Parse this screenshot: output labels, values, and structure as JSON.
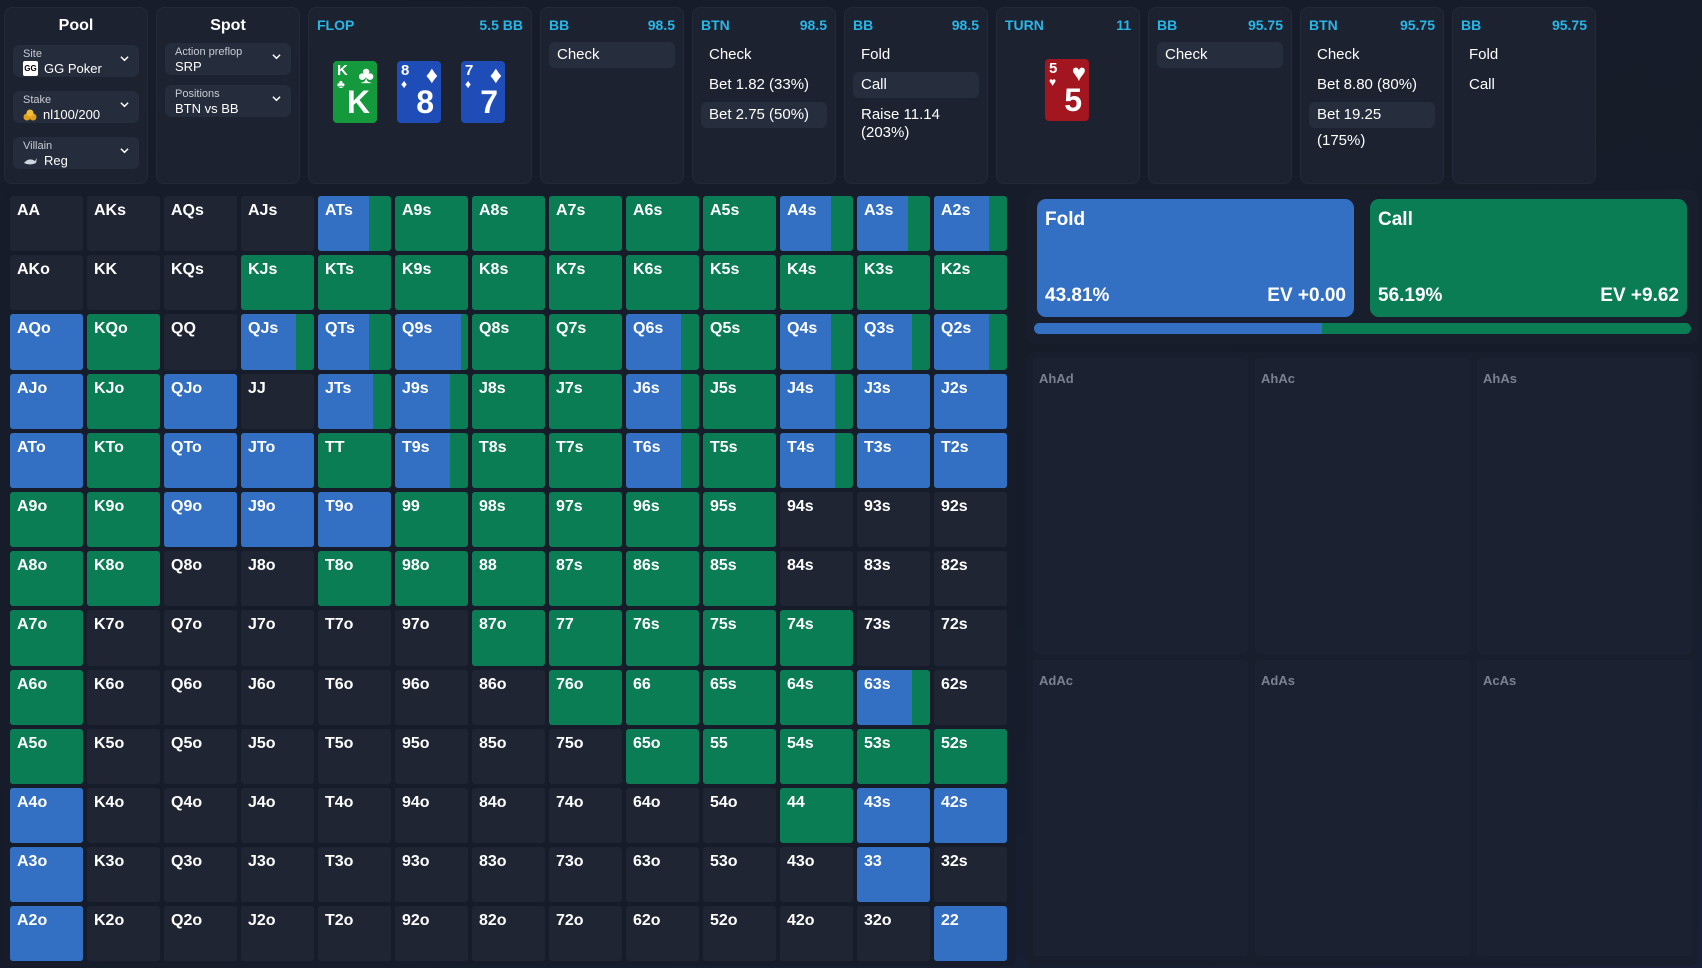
{
  "pool": {
    "title": "Pool",
    "site_label": "Site",
    "site_value": "GG Poker",
    "site_tag": "GG",
    "stake_label": "Stake",
    "stake_value": "nl100/200",
    "villain_label": "Villain",
    "villain_value": "Reg"
  },
  "spot": {
    "title": "Spot",
    "preflop_label": "Action preflop",
    "preflop_value": "SRP",
    "positions_label": "Positions",
    "positions_value": "BTN vs BB"
  },
  "flop": {
    "title": "FLOP",
    "pot": "5.5 BB",
    "cards": [
      {
        "rank": "K",
        "suit": "♣",
        "color": "#149a3c"
      },
      {
        "rank": "8",
        "suit": "♦",
        "color": "#1f4db8"
      },
      {
        "rank": "7",
        "suit": "♦",
        "color": "#1f4db8"
      }
    ]
  },
  "turn": {
    "title": "TURN",
    "pot": "11",
    "card": {
      "rank": "5",
      "suit": "♥",
      "color": "#a3161f"
    }
  },
  "streets": [
    {
      "player": "BB",
      "stack": "98.5",
      "actions": [
        "Check"
      ],
      "selected": 0
    },
    {
      "player": "BTN",
      "stack": "98.5",
      "actions": [
        "Check",
        "Bet 1.82 (33%)",
        "Bet 2.75 (50%)"
      ],
      "selected": 2
    },
    {
      "player": "BB",
      "stack": "98.5",
      "actions": [
        "Fold",
        "Call",
        "Raise 11.14 (203%)"
      ],
      "selected": 1
    },
    {
      "player": "BB",
      "stack": "95.75",
      "actions": [
        "Check"
      ],
      "selected": 0
    },
    {
      "player": "BTN",
      "stack": "95.75",
      "actions": [
        "Check",
        "Bet 8.80 (80%)",
        "Bet 19.25 (175%)"
      ],
      "selected": 2
    },
    {
      "player": "BB",
      "stack": "95.75",
      "actions": [
        "Fold",
        "Call"
      ],
      "selected": -1
    }
  ],
  "colors": {
    "fold": "#3370c4",
    "call": "#0a7d55",
    "empty": "#1f2533",
    "accent": "#29b6e8"
  },
  "summary": {
    "fold": {
      "label": "Fold",
      "pct": "43.81%",
      "ev": "EV +0.00",
      "freq": 0.4381
    },
    "call": {
      "label": "Call",
      "pct": "56.19%",
      "ev": "EV +9.62",
      "freq": 0.5619
    }
  },
  "combos": [
    "AhAd",
    "AhAc",
    "AhAs",
    "AdAc",
    "AdAs",
    "AcAs"
  ],
  "range_grid": [
    [
      [
        "AA",
        null
      ],
      [
        "AKs",
        null
      ],
      [
        "AQs",
        null
      ],
      [
        "AJs",
        null
      ],
      [
        "ATs",
        0.7
      ],
      [
        "A9s",
        0
      ],
      [
        "A8s",
        0
      ],
      [
        "A7s",
        0
      ],
      [
        "A6s",
        0
      ],
      [
        "A5s",
        0
      ],
      [
        "A4s",
        0.7
      ],
      [
        "A3s",
        0.7
      ],
      [
        "A2s",
        0.75
      ]
    ],
    [
      [
        "AKo",
        null
      ],
      [
        "KK",
        null
      ],
      [
        "KQs",
        null
      ],
      [
        "KJs",
        0
      ],
      [
        "KTs",
        0
      ],
      [
        "K9s",
        0
      ],
      [
        "K8s",
        0
      ],
      [
        "K7s",
        0
      ],
      [
        "K6s",
        0
      ],
      [
        "K5s",
        0
      ],
      [
        "K4s",
        0
      ],
      [
        "K3s",
        0
      ],
      [
        "K2s",
        0
      ]
    ],
    [
      [
        "AQo",
        1
      ],
      [
        "KQo",
        0
      ],
      [
        "QQ",
        null
      ],
      [
        "QJs",
        0.75
      ],
      [
        "QTs",
        0.7
      ],
      [
        "Q9s",
        0.9
      ],
      [
        "Q8s",
        0
      ],
      [
        "Q7s",
        0
      ],
      [
        "Q6s",
        0.75
      ],
      [
        "Q5s",
        0
      ],
      [
        "Q4s",
        0.7
      ],
      [
        "Q3s",
        0.75
      ],
      [
        "Q2s",
        0.75
      ]
    ],
    [
      [
        "AJo",
        1
      ],
      [
        "KJo",
        0
      ],
      [
        "QJo",
        1
      ],
      [
        "JJ",
        null
      ],
      [
        "JTs",
        0.75
      ],
      [
        "J9s",
        0.75
      ],
      [
        "J8s",
        0
      ],
      [
        "J7s",
        0
      ],
      [
        "J6s",
        0.75
      ],
      [
        "J5s",
        0
      ],
      [
        "J4s",
        0.75
      ],
      [
        "J3s",
        1
      ],
      [
        "J2s",
        1
      ]
    ],
    [
      [
        "ATo",
        1
      ],
      [
        "KTo",
        0
      ],
      [
        "QTo",
        1
      ],
      [
        "JTo",
        1
      ],
      [
        "TT",
        0
      ],
      [
        "T9s",
        0.75
      ],
      [
        "T8s",
        0
      ],
      [
        "T7s",
        0
      ],
      [
        "T6s",
        0.75
      ],
      [
        "T5s",
        0
      ],
      [
        "T4s",
        0.75
      ],
      [
        "T3s",
        1
      ],
      [
        "T2s",
        1
      ]
    ],
    [
      [
        "A9o",
        0
      ],
      [
        "K9o",
        0
      ],
      [
        "Q9o",
        1
      ],
      [
        "J9o",
        1
      ],
      [
        "T9o",
        1
      ],
      [
        "99",
        0
      ],
      [
        "98s",
        0
      ],
      [
        "97s",
        0
      ],
      [
        "96s",
        0
      ],
      [
        "95s",
        0
      ],
      [
        "94s",
        null
      ],
      [
        "93s",
        null
      ],
      [
        "92s",
        null
      ]
    ],
    [
      [
        "A8o",
        0
      ],
      [
        "K8o",
        0
      ],
      [
        "Q8o",
        null
      ],
      [
        "J8o",
        null
      ],
      [
        "T8o",
        0
      ],
      [
        "98o",
        0
      ],
      [
        "88",
        0
      ],
      [
        "87s",
        0
      ],
      [
        "86s",
        0
      ],
      [
        "85s",
        0
      ],
      [
        "84s",
        null
      ],
      [
        "83s",
        null
      ],
      [
        "82s",
        null
      ]
    ],
    [
      [
        "A7o",
        0
      ],
      [
        "K7o",
        null
      ],
      [
        "Q7o",
        null
      ],
      [
        "J7o",
        null
      ],
      [
        "T7o",
        null
      ],
      [
        "97o",
        null
      ],
      [
        "87o",
        0
      ],
      [
        "77",
        0
      ],
      [
        "76s",
        0
      ],
      [
        "75s",
        0
      ],
      [
        "74s",
        0
      ],
      [
        "73s",
        null
      ],
      [
        "72s",
        null
      ]
    ],
    [
      [
        "A6o",
        0
      ],
      [
        "K6o",
        null
      ],
      [
        "Q6o",
        null
      ],
      [
        "J6o",
        null
      ],
      [
        "T6o",
        null
      ],
      [
        "96o",
        null
      ],
      [
        "86o",
        null
      ],
      [
        "76o",
        0
      ],
      [
        "66",
        0
      ],
      [
        "65s",
        0
      ],
      [
        "64s",
        0
      ],
      [
        "63s",
        0.75
      ],
      [
        "62s",
        null
      ]
    ],
    [
      [
        "A5o",
        0
      ],
      [
        "K5o",
        null
      ],
      [
        "Q5o",
        null
      ],
      [
        "J5o",
        null
      ],
      [
        "T5o",
        null
      ],
      [
        "95o",
        null
      ],
      [
        "85o",
        null
      ],
      [
        "75o",
        null
      ],
      [
        "65o",
        0
      ],
      [
        "55",
        0
      ],
      [
        "54s",
        0
      ],
      [
        "53s",
        0
      ],
      [
        "52s",
        0
      ]
    ],
    [
      [
        "A4o",
        1
      ],
      [
        "K4o",
        null
      ],
      [
        "Q4o",
        null
      ],
      [
        "J4o",
        null
      ],
      [
        "T4o",
        null
      ],
      [
        "94o",
        null
      ],
      [
        "84o",
        null
      ],
      [
        "74o",
        null
      ],
      [
        "64o",
        null
      ],
      [
        "54o",
        null
      ],
      [
        "44",
        0
      ],
      [
        "43s",
        1
      ],
      [
        "42s",
        1
      ]
    ],
    [
      [
        "A3o",
        1
      ],
      [
        "K3o",
        null
      ],
      [
        "Q3o",
        null
      ],
      [
        "J3o",
        null
      ],
      [
        "T3o",
        null
      ],
      [
        "93o",
        null
      ],
      [
        "83o",
        null
      ],
      [
        "73o",
        null
      ],
      [
        "63o",
        null
      ],
      [
        "53o",
        null
      ],
      [
        "43o",
        null
      ],
      [
        "33",
        1
      ],
      [
        "32s",
        null
      ]
    ],
    [
      [
        "A2o",
        1
      ],
      [
        "K2o",
        null
      ],
      [
        "Q2o",
        null
      ],
      [
        "J2o",
        null
      ],
      [
        "T2o",
        null
      ],
      [
        "92o",
        null
      ],
      [
        "82o",
        null
      ],
      [
        "72o",
        null
      ],
      [
        "62o",
        null
      ],
      [
        "52o",
        null
      ],
      [
        "42o",
        null
      ],
      [
        "32o",
        null
      ],
      [
        "22",
        1
      ]
    ]
  ]
}
